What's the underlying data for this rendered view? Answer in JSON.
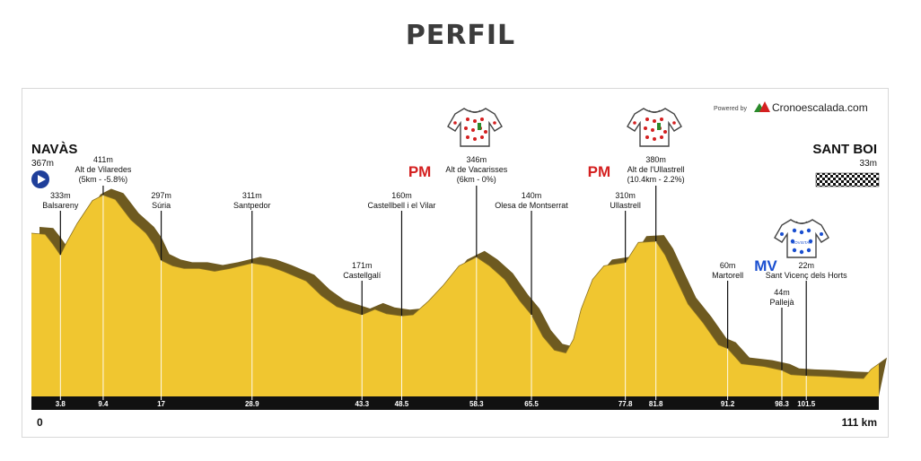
{
  "page": {
    "title": "PERFIL"
  },
  "brand": {
    "powered_by": "Powered by",
    "name": "Cronoescalada.com",
    "colors": {
      "red": "#d42020",
      "green": "#2a8a2a",
      "blue": "#1a4fd0"
    }
  },
  "start": {
    "name": "NAVÀS",
    "elevation": "367m",
    "km_label": "0",
    "start_icon": "play-circle-icon"
  },
  "finish": {
    "name": "SANT BOI",
    "elevation": "33m",
    "km_label": "111 km",
    "finish_icon": "checkered-flag-icon"
  },
  "jerseys": [
    {
      "name": "mountain-jersey-1",
      "icon": "polka-dot-jersey-icon",
      "dot_color": "#d42020"
    },
    {
      "name": "mountain-jersey-2",
      "icon": "polka-dot-jersey-icon",
      "dot_color": "#d42020"
    },
    {
      "name": "sprint-jersey",
      "icon": "blue-dot-jersey-icon",
      "dot_color": "#1a4fd0",
      "label": "MOVISTAR"
    }
  ],
  "chart_data": {
    "type": "area",
    "title": "PERFIL",
    "xlabel": "",
    "ylabel": "",
    "x_unit": "km",
    "y_unit": "m",
    "xlim": [
      0,
      111
    ],
    "ylim": [
      0,
      450
    ],
    "fill_color": "#f0c630",
    "shadow_color": "#6e5a20",
    "profile": [
      [
        0,
        300
      ],
      [
        1.8,
        298
      ],
      [
        2.8,
        280
      ],
      [
        3.8,
        260
      ],
      [
        4.5,
        280
      ],
      [
        6,
        318
      ],
      [
        8,
        360
      ],
      [
        9.4,
        370
      ],
      [
        11,
        362
      ],
      [
        13,
        325
      ],
      [
        15,
        300
      ],
      [
        16,
        280
      ],
      [
        17,
        250
      ],
      [
        18.5,
        240
      ],
      [
        20,
        235
      ],
      [
        22,
        235
      ],
      [
        24,
        230
      ],
      [
        26,
        235
      ],
      [
        28.9,
        245
      ],
      [
        31,
        240
      ],
      [
        33,
        230
      ],
      [
        36,
        212
      ],
      [
        38,
        185
      ],
      [
        40,
        165
      ],
      [
        43.3,
        150
      ],
      [
        45,
        160
      ],
      [
        46.5,
        152
      ],
      [
        48.5,
        148
      ],
      [
        50,
        150
      ],
      [
        52,
        175
      ],
      [
        54,
        205
      ],
      [
        56,
        240
      ],
      [
        58.3,
        256
      ],
      [
        60,
        240
      ],
      [
        62,
        215
      ],
      [
        64,
        175
      ],
      [
        65.5,
        150
      ],
      [
        67,
        110
      ],
      [
        68.5,
        85
      ],
      [
        70,
        80
      ],
      [
        71,
        105
      ],
      [
        72,
        160
      ],
      [
        73.5,
        215
      ],
      [
        75,
        240
      ],
      [
        77.8,
        246
      ],
      [
        79.5,
        283
      ],
      [
        81.8,
        285
      ],
      [
        83,
        260
      ],
      [
        84.5,
        215
      ],
      [
        86,
        170
      ],
      [
        88,
        135
      ],
      [
        90,
        95
      ],
      [
        91.2,
        88
      ],
      [
        93,
        60
      ],
      [
        96,
        55
      ],
      [
        98.3,
        48
      ],
      [
        99.5,
        40
      ],
      [
        101.5,
        38
      ],
      [
        104,
        37
      ],
      [
        107,
        34
      ],
      [
        109,
        33
      ],
      [
        110,
        50
      ],
      [
        111,
        60
      ]
    ],
    "km_markers": [
      "3.8",
      "9.4",
      "17",
      "28.9",
      "43.3",
      "48.5",
      "58.3",
      "65.5",
      "77.8",
      "81.8",
      "91.2",
      "98.3",
      "101.5"
    ],
    "annotations": [
      {
        "km": 3.8,
        "elev": "333m",
        "name": "Balsareny"
      },
      {
        "km": 9.4,
        "elev": "411m",
        "name": "Alt de Vilaredes",
        "detail": "(5km - -5.8%)"
      },
      {
        "km": 17,
        "elev": "297m",
        "name": "Súria"
      },
      {
        "km": 28.9,
        "elev": "311m",
        "name": "Santpedor"
      },
      {
        "km": 43.3,
        "elev": "171m",
        "name": "Castellgalí"
      },
      {
        "km": 48.5,
        "elev": "160m",
        "name": "Castellbell i el Vilar"
      },
      {
        "km": 58.3,
        "elev": "346m",
        "name": "Alt de Vacarisses",
        "detail": "(6km - 0%)",
        "badge": "PM"
      },
      {
        "km": 65.5,
        "elev": "140m",
        "name": "Olesa de Montserrat"
      },
      {
        "km": 77.8,
        "elev": "310m",
        "name": "Ullastrell"
      },
      {
        "km": 81.8,
        "elev": "380m",
        "name": "Alt de l'Ullastrell",
        "detail": "(10.4km - 2.2%)",
        "badge": "PM"
      },
      {
        "km": 91.2,
        "elev": "60m",
        "name": "Martorell"
      },
      {
        "km": 98.3,
        "elev": "44m",
        "name": "Pallejà"
      },
      {
        "km": 101.5,
        "elev": "22m",
        "name": "Sant Vicenç dels Horts",
        "badge": "MV"
      }
    ]
  }
}
